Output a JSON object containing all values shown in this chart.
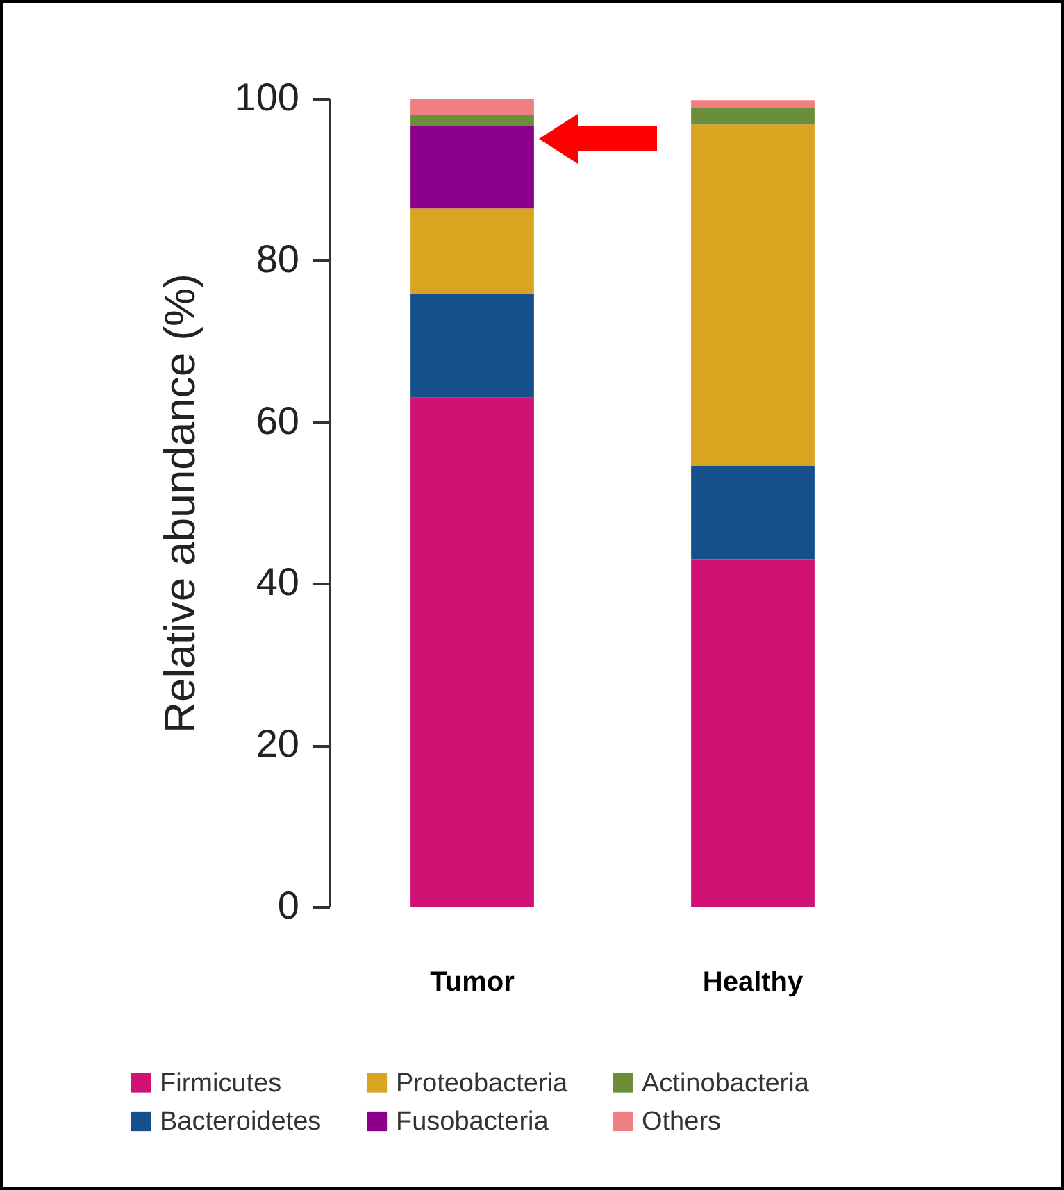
{
  "chart_data": {
    "type": "bar",
    "stacked": true,
    "ylabel": "Relative abundance (%)",
    "categories": [
      "Tumor",
      "Healthy"
    ],
    "series": [
      {
        "name": "Firmicutes",
        "color": "#cf1273",
        "values": [
          63,
          43
        ]
      },
      {
        "name": "Bacteroidetes",
        "color": "#16508c",
        "values": [
          12.8,
          11.6
        ]
      },
      {
        "name": "Proteobacteria",
        "color": "#d9a520",
        "values": [
          10.6,
          42.2
        ]
      },
      {
        "name": "Fusobacteria",
        "color": "#8b008b",
        "values": [
          10.2,
          0
        ]
      },
      {
        "name": "Actinobacteria",
        "color": "#6b8e3a",
        "values": [
          1.4,
          2
        ]
      },
      {
        "name": "Others",
        "color": "#f08080",
        "values": [
          2,
          1
        ]
      }
    ],
    "ylim": [
      0,
      100
    ],
    "yticks": [
      0,
      20,
      40,
      60,
      80,
      100
    ],
    "legend": "bottom"
  }
}
